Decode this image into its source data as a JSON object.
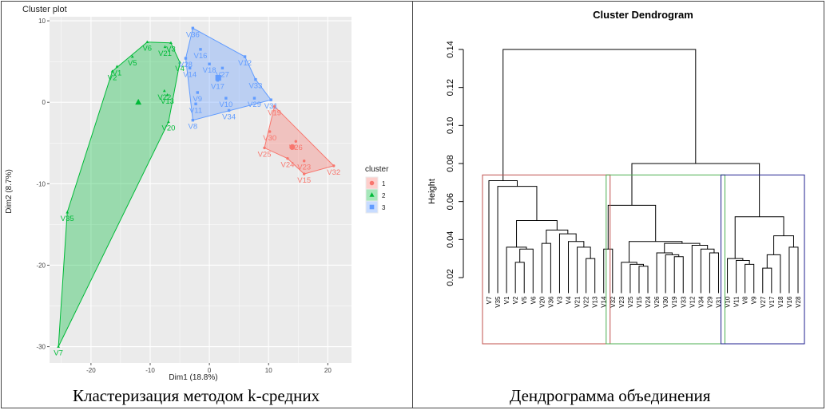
{
  "captions": {
    "left": "Кластеризация методом k-средних",
    "right": "Дендрограмма объединения"
  },
  "chart_data": [
    {
      "type": "scatter",
      "title": "Cluster plot",
      "xlabel": "Dim1 (18.8%)",
      "ylabel": "Dim2 (8.7%)",
      "xlim": [
        -27,
        24
      ],
      "ylim": [
        -32,
        10.5
      ],
      "xticks": [
        -20,
        -10,
        0,
        10,
        20
      ],
      "yticks": [
        10,
        0,
        -10,
        -20,
        -30
      ],
      "grid": true,
      "legend": {
        "title": "cluster",
        "labels": [
          "1",
          "2",
          "3"
        ],
        "placement": "right"
      },
      "series": [
        {
          "name": "1",
          "color": "#F8766D",
          "points": [
            {
              "label": "V19",
              "x": 11.0,
              "y": -0.5
            },
            {
              "label": "V30",
              "x": 10.2,
              "y": -3.6
            },
            {
              "label": "V26",
              "x": 14.6,
              "y": -4.8
            },
            {
              "label": "V25",
              "x": 9.3,
              "y": -5.6
            },
            {
              "label": "V24",
              "x": 13.2,
              "y": -6.9
            },
            {
              "label": "V23",
              "x": 16.0,
              "y": -7.2
            },
            {
              "label": "V32",
              "x": 21.0,
              "y": -7.8
            },
            {
              "label": "V15",
              "x": 16.0,
              "y": -8.8
            }
          ],
          "hull": [
            "V19",
            "V32",
            "V15",
            "V24",
            "V25"
          ],
          "centroid": {
            "x": 14.0,
            "y": -5.5
          }
        },
        {
          "name": "2",
          "color": "#00BA38",
          "points": [
            {
              "label": "V6",
              "x": -10.5,
              "y": 7.4
            },
            {
              "label": "V3",
              "x": -6.5,
              "y": 7.3
            },
            {
              "label": "V5",
              "x": -13.0,
              "y": 5.6
            },
            {
              "label": "V21",
              "x": -7.5,
              "y": 6.8
            },
            {
              "label": "V1",
              "x": -15.6,
              "y": 4.4
            },
            {
              "label": "V2",
              "x": -16.4,
              "y": 3.8
            },
            {
              "label": "V4",
              "x": -5.0,
              "y": 4.9
            },
            {
              "label": "V22",
              "x": -7.6,
              "y": 1.4
            },
            {
              "label": "V13",
              "x": -7.1,
              "y": 0.9
            },
            {
              "label": "V20",
              "x": -6.9,
              "y": -2.4
            },
            {
              "label": "V35",
              "x": -24.0,
              "y": -13.5
            },
            {
              "label": "V7",
              "x": -25.5,
              "y": -30.0
            }
          ],
          "hull": [
            "V2",
            "V6",
            "V3",
            "V4",
            "V20",
            "V7",
            "V35"
          ],
          "centroid": {
            "x": -12.0,
            "y": 0.0
          }
        },
        {
          "name": "3",
          "color": "#619CFF",
          "points": [
            {
              "label": "V36",
              "x": -2.8,
              "y": 9.1
            },
            {
              "label": "V16",
              "x": -1.5,
              "y": 6.5
            },
            {
              "label": "V28",
              "x": -4.0,
              "y": 5.4
            },
            {
              "label": "V12",
              "x": 6.0,
              "y": 5.6
            },
            {
              "label": "V18",
              "x": 0.0,
              "y": 4.7
            },
            {
              "label": "V27",
              "x": 2.2,
              "y": 4.2
            },
            {
              "label": "V14",
              "x": -3.3,
              "y": 4.2
            },
            {
              "label": "V17",
              "x": 1.4,
              "y": 2.7
            },
            {
              "label": "V33",
              "x": 7.8,
              "y": 2.8
            },
            {
              "label": "V9",
              "x": -2.0,
              "y": 1.2
            },
            {
              "label": "V10",
              "x": 2.8,
              "y": 0.5
            },
            {
              "label": "V29",
              "x": 7.6,
              "y": 0.5
            },
            {
              "label": "V31",
              "x": 10.4,
              "y": 0.3
            },
            {
              "label": "V11",
              "x": -2.3,
              "y": -0.2
            },
            {
              "label": "V34",
              "x": 3.3,
              "y": -1.0
            },
            {
              "label": "V8",
              "x": -2.8,
              "y": -2.2
            }
          ],
          "hull": [
            "V28",
            "V36",
            "V12",
            "V33",
            "V31",
            "V8"
          ],
          "centroid": {
            "x": 1.5,
            "y": 3.0
          }
        }
      ]
    },
    {
      "type": "dendrogram",
      "title": "Cluster Dendrogram",
      "ylabel": "Height",
      "ylim": [
        0.02,
        0.14
      ],
      "yticks": [
        0.02,
        0.04,
        0.06,
        0.08,
        0.1,
        0.12,
        0.14
      ],
      "leaves": [
        "V7",
        "V35",
        "V1",
        "V2",
        "V5",
        "V6",
        "V20",
        "V36",
        "V3",
        "V4",
        "V21",
        "V22",
        "V13",
        "V14",
        "V32",
        "V23",
        "V25",
        "V15",
        "V24",
        "V26",
        "V30",
        "V19",
        "V33",
        "V12",
        "V34",
        "V29",
        "V31",
        "V10",
        "V11",
        "V8",
        "V9",
        "V27",
        "V17",
        "V18",
        "V16",
        "V28"
      ],
      "merges": [
        {
          "id": "a1",
          "left": "V2",
          "right": "V5",
          "height": 0.028
        },
        {
          "id": "a2",
          "left": "a1",
          "right": "V6",
          "height": 0.035
        },
        {
          "id": "a3",
          "left": "V1",
          "right": "a2",
          "height": 0.036
        },
        {
          "id": "a4",
          "left": "V22",
          "right": "V13",
          "height": 0.03
        },
        {
          "id": "a5",
          "left": "V21",
          "right": "a4",
          "height": 0.036
        },
        {
          "id": "a6",
          "left": "V4",
          "right": "a5",
          "height": 0.039
        },
        {
          "id": "a7",
          "left": "V3",
          "right": "a6",
          "height": 0.043
        },
        {
          "id": "a8",
          "left": "V20",
          "right": "V36",
          "height": 0.038
        },
        {
          "id": "a9",
          "left": "a8",
          "right": "a7",
          "height": 0.045
        },
        {
          "id": "a10",
          "left": "a3",
          "right": "a9",
          "height": 0.05
        },
        {
          "id": "a11",
          "left": "V35",
          "right": "a10",
          "height": 0.068
        },
        {
          "id": "a12",
          "left": "V7",
          "right": "a11",
          "height": 0.071
        },
        {
          "id": "b1",
          "left": "V14",
          "right": "V32",
          "height": 0.035
        },
        {
          "id": "b2",
          "left": "V15",
          "right": "V24",
          "height": 0.026
        },
        {
          "id": "b3",
          "left": "V25",
          "right": "b2",
          "height": 0.027
        },
        {
          "id": "b4",
          "left": "V23",
          "right": "b3",
          "height": 0.028
        },
        {
          "id": "b5",
          "left": "V19",
          "right": "V33",
          "height": 0.031
        },
        {
          "id": "b6",
          "left": "V30",
          "right": "b5",
          "height": 0.032
        },
        {
          "id": "b7",
          "left": "V26",
          "right": "b6",
          "height": 0.033
        },
        {
          "id": "b8",
          "left": "V29",
          "right": "V31",
          "height": 0.033
        },
        {
          "id": "b9",
          "left": "V34",
          "right": "b8",
          "height": 0.035
        },
        {
          "id": "b10",
          "left": "V12",
          "right": "b9",
          "height": 0.037
        },
        {
          "id": "b11",
          "left": "b7",
          "right": "b10",
          "height": 0.038
        },
        {
          "id": "b12",
          "left": "b4",
          "right": "b11",
          "height": 0.039
        },
        {
          "id": "b13",
          "left": "b1",
          "right": "b12",
          "height": 0.058
        },
        {
          "id": "c1",
          "left": "V8",
          "right": "V9",
          "height": 0.027
        },
        {
          "id": "c2",
          "left": "V11",
          "right": "c1",
          "height": 0.029
        },
        {
          "id": "c3",
          "left": "V10",
          "right": "c2",
          "height": 0.03
        },
        {
          "id": "c4",
          "left": "V27",
          "right": "V17",
          "height": 0.025
        },
        {
          "id": "c5",
          "left": "c4",
          "right": "V18",
          "height": 0.032
        },
        {
          "id": "c6",
          "left": "V16",
          "right": "V28",
          "height": 0.036
        },
        {
          "id": "c7",
          "left": "c5",
          "right": "c6",
          "height": 0.042
        },
        {
          "id": "c8",
          "left": "c3",
          "right": "c7",
          "height": 0.052
        },
        {
          "id": "d1",
          "left": "b13",
          "right": "c8",
          "height": 0.08
        },
        {
          "id": "root",
          "left": "a12",
          "right": "d1",
          "height": 0.14
        }
      ],
      "clusters": [
        {
          "from": "V7",
          "to": "V14",
          "color": "#C0504D"
        },
        {
          "from": "V32",
          "to": "V31",
          "color": "#4CAF50"
        },
        {
          "from": "V10",
          "to": "V28",
          "color": "#1F1F8F"
        }
      ],
      "box_top_height": 0.074
    }
  ]
}
